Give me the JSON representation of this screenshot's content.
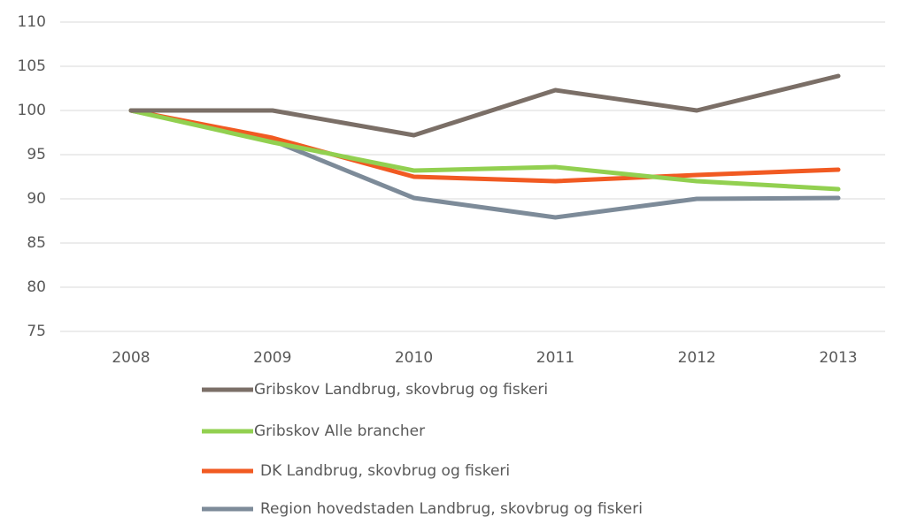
{
  "chart_data": {
    "type": "line",
    "categories": [
      "2008",
      "2009",
      "2010",
      "2011",
      "2012",
      "2013"
    ],
    "series": [
      {
        "name": "Gribskov Landbrug, skovbrug og fiskeri",
        "color": "#7b6f67",
        "values": [
          100,
          100,
          97.2,
          102.3,
          100,
          103.9
        ]
      },
      {
        "name": "Gribskov Alle brancher",
        "color": "#92d050",
        "values": [
          100,
          96.4,
          93.2,
          93.6,
          92,
          91.1
        ]
      },
      {
        "name": "DK Landbrug, skovbrug og fiskeri",
        "color": "#f15a22",
        "values": [
          100,
          96.9,
          92.5,
          92,
          92.7,
          93.3
        ]
      },
      {
        "name": "Region hovedstaden Landbrug, skovbrug og fiskeri",
        "color": "#7d8b99",
        "values": [
          100,
          96.6,
          90.1,
          87.9,
          90,
          90.1
        ]
      }
    ],
    "ylim": [
      75,
      110
    ],
    "yticks": [
      75,
      80,
      85,
      90,
      95,
      100,
      105,
      110
    ],
    "grid": true,
    "legend": "bottom"
  }
}
